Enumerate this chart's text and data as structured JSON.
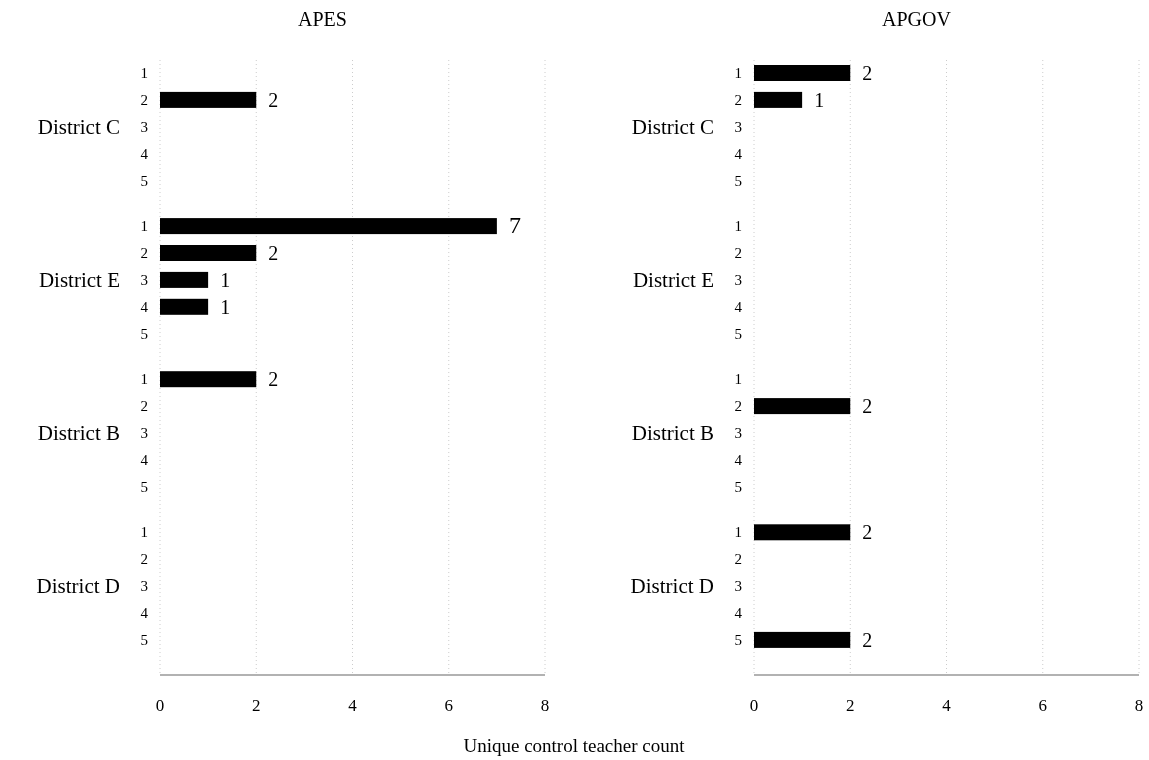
{
  "chart_data": [
    {
      "type": "bar",
      "orientation": "horizontal",
      "title": "APES",
      "xlabel": "Unique control teacher count",
      "categories": [
        "1",
        "2",
        "3",
        "4",
        "5",
        "1",
        "2",
        "3",
        "4",
        "5",
        "1",
        "2",
        "3",
        "4",
        "5",
        "1",
        "2",
        "3",
        "4",
        "5"
      ],
      "annotations": [
        "District C",
        "District E",
        "District B",
        "District D"
      ],
      "values": [
        null,
        2,
        null,
        null,
        null,
        7,
        2,
        1,
        1,
        null,
        2,
        null,
        null,
        null,
        null,
        null,
        null,
        null,
        null,
        null
      ],
      "color": "#000000",
      "xlim": [
        0,
        8
      ],
      "xticks": [
        0,
        2,
        4,
        6,
        8
      ],
      "grid": "x",
      "data_labels": true
    },
    {
      "type": "bar",
      "orientation": "horizontal",
      "title": "APGOV",
      "categories": [
        "1",
        "2",
        "3",
        "4",
        "5",
        "1",
        "2",
        "3",
        "4",
        "5",
        "1",
        "2",
        "3",
        "4",
        "5",
        "1",
        "2",
        "3",
        "4",
        "5"
      ],
      "annotations": [
        "District C",
        "District E",
        "District B",
        "District D"
      ],
      "values": [
        2,
        1,
        null,
        null,
        null,
        null,
        null,
        null,
        null,
        null,
        null,
        2,
        null,
        null,
        null,
        2,
        null,
        null,
        null,
        2
      ],
      "color": "#000000",
      "xlim": [
        0,
        8
      ],
      "xticks": [
        0,
        2,
        4,
        6,
        8
      ],
      "grid": "x",
      "data_labels": true
    }
  ]
}
